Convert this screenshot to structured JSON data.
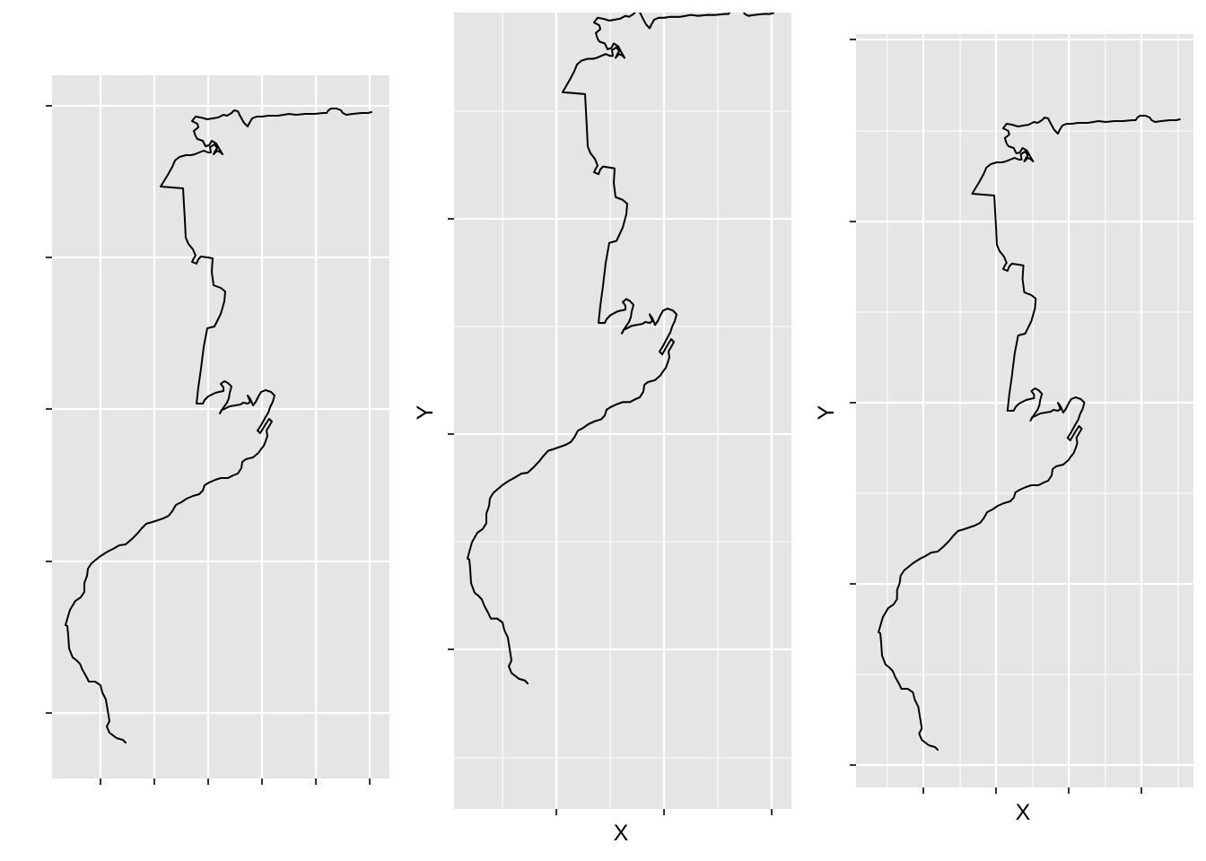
{
  "figure": {
    "panels": [
      {
        "id": "panel-1",
        "x_label": "",
        "y_label": ""
      },
      {
        "id": "panel-2",
        "x_label": "X",
        "y_label": "Y"
      },
      {
        "id": "panel-3",
        "x_label": "X",
        "y_label": "Y"
      }
    ]
  },
  "style": {
    "panel_background": "#e5e5e5",
    "grid_color": "#ffffff",
    "line_color": "#000000",
    "tick_color": "#333333"
  }
}
